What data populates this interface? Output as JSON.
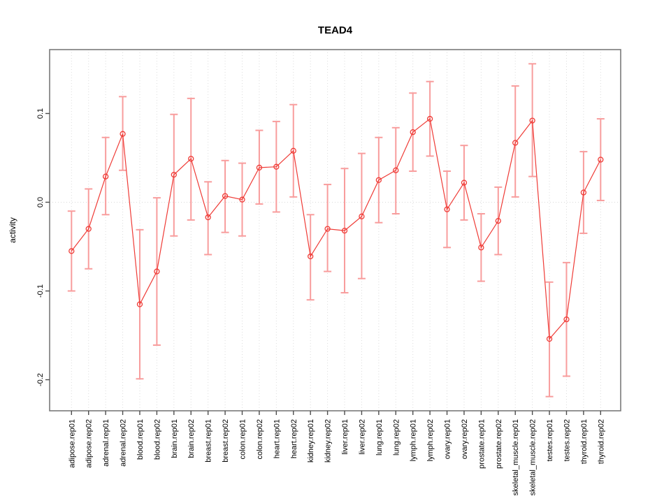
{
  "window": {
    "background": "#ffffff"
  },
  "chart_data": {
    "type": "scatter",
    "subtype": "points-with-error-bars",
    "title": "TEAD4",
    "xlabel": "",
    "ylabel": "activity",
    "legend": "none",
    "grid": {
      "vertical": "dotted at every category",
      "horizontal": "dotted at 0.0"
    },
    "ylim": [
      -0.235,
      0.172
    ],
    "ytick_values": [
      0.1,
      0.0,
      -0.1,
      -0.2
    ],
    "ytick_labels": [
      "0.1",
      "0.0",
      "-0.1",
      "-0.2"
    ],
    "categories": [
      "adipose.rep01",
      "adipose.rep02",
      "adrenal.rep01",
      "adrenal.rep02",
      "blood.rep01",
      "blood.rep02",
      "brain.rep01",
      "brain.rep02",
      "breast.rep01",
      "breast.rep02",
      "colon.rep01",
      "colon.rep02",
      "heart.rep01",
      "heart.rep02",
      "kidney.rep01",
      "kidney.rep02",
      "liver.rep01",
      "liver.rep02",
      "lung.rep01",
      "lung.rep02",
      "lymph.rep01",
      "lymph.rep02",
      "ovary.rep01",
      "ovary.rep02",
      "prostate.rep01",
      "prostate.rep02",
      "skeletal_muscle.rep01",
      "skeletal_muscle.rep02",
      "testes.rep01",
      "testes.rep02",
      "thyroid.rep01",
      "thyroid.rep02"
    ],
    "values": [
      -0.055,
      -0.03,
      0.029,
      0.077,
      -0.115,
      -0.078,
      0.031,
      0.049,
      -0.017,
      0.007,
      0.003,
      0.039,
      0.04,
      0.058,
      -0.061,
      -0.03,
      -0.032,
      -0.016,
      0.025,
      0.036,
      0.079,
      0.094,
      -0.008,
      0.022,
      -0.051,
      -0.021,
      0.067,
      0.092,
      -0.154,
      -0.132,
      0.011,
      0.048
    ],
    "ci_low": [
      -0.1,
      -0.075,
      -0.014,
      0.036,
      -0.199,
      -0.161,
      -0.038,
      -0.02,
      -0.059,
      -0.034,
      -0.038,
      -0.002,
      -0.011,
      0.006,
      -0.11,
      -0.078,
      -0.102,
      -0.086,
      -0.023,
      -0.013,
      0.035,
      0.052,
      -0.051,
      -0.02,
      -0.089,
      -0.059,
      0.006,
      0.029,
      -0.219,
      -0.196,
      -0.035,
      0.002
    ],
    "ci_high": [
      -0.01,
      0.015,
      0.073,
      0.119,
      -0.031,
      0.005,
      0.099,
      0.117,
      0.023,
      0.047,
      0.044,
      0.081,
      0.091,
      0.11,
      -0.014,
      0.02,
      0.038,
      0.055,
      0.073,
      0.084,
      0.123,
      0.136,
      0.035,
      0.064,
      -0.013,
      0.017,
      0.131,
      0.156,
      -0.09,
      -0.068,
      0.057,
      0.094
    ],
    "colors": {
      "point": "#ef3b36",
      "line": "#ef3b36",
      "error_bar": "#f89d9d",
      "grid": "#dcdcdc",
      "zero_line": "#d9d9d9",
      "axis_box": "#7a7a7a",
      "tick": "#4d4d4d",
      "text": "#000000"
    }
  }
}
